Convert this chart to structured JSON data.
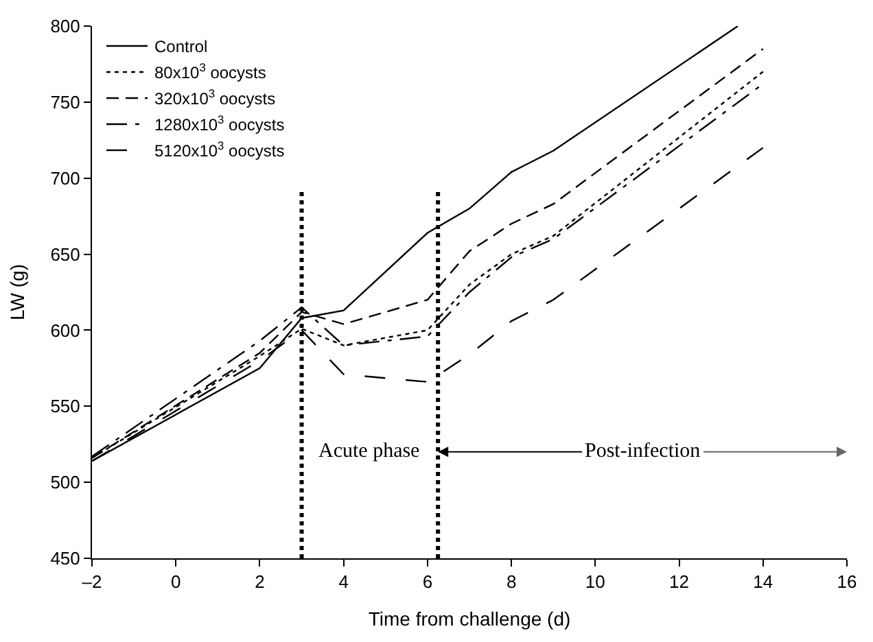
{
  "chart_data": {
    "type": "line",
    "xlabel": "Time from challenge (d)",
    "ylabel": "LW (g)",
    "xlim": [
      -2,
      16
    ],
    "xticks": [
      {
        "value": -2,
        "label": "–2"
      },
      0,
      2,
      4,
      6,
      8,
      10,
      12,
      14,
      16
    ],
    "ylim": [
      450,
      800
    ],
    "yticks": [
      450,
      500,
      550,
      600,
      650,
      700,
      750,
      800
    ],
    "legend": "top left",
    "marker": "none",
    "series": [
      {
        "name": "Control",
        "color": "#000000",
        "line_style": "solid",
        "x": [
          -2,
          2,
          3,
          4,
          6,
          7,
          8,
          9,
          13.4
        ],
        "values": [
          514,
          575,
          608,
          613,
          664,
          680,
          704,
          718,
          800
        ]
      },
      {
        "name": "80x10$^{3}$ oocysts",
        "color": "#000000",
        "line_style": "dotted",
        "x": [
          -2,
          2,
          3,
          4,
          6,
          7,
          8,
          9,
          14
        ],
        "values": [
          516,
          583,
          601,
          590,
          600,
          630,
          650,
          662,
          770
        ]
      },
      {
        "name": "320x10$^{3}$ oocysts",
        "color": "#000000",
        "line_style": "dashed",
        "x": [
          -2,
          2,
          3,
          4,
          6,
          7,
          8,
          9,
          14
        ],
        "values": [
          516,
          585,
          612,
          604,
          620,
          652,
          670,
          683,
          785
        ]
      },
      {
        "name": "1280x10$^{3}$ oocysts",
        "color": "#000000",
        "line_style": "dashdot",
        "x": [
          -2,
          2,
          3,
          4,
          6,
          7,
          8,
          9,
          14
        ],
        "values": [
          517,
          593,
          615,
          590,
          596,
          625,
          648,
          660,
          762
        ]
      },
      {
        "name": "5120x10$^{3}$ oocysts",
        "color": "#000000",
        "line_style": "longdash",
        "x": [
          -2,
          2,
          3,
          4,
          6,
          7,
          8,
          9,
          14
        ],
        "values": [
          514,
          580,
          600,
          571,
          566,
          584,
          606,
          620,
          720
        ]
      }
    ],
    "ref_lines": [
      {
        "axis": "x",
        "value": 3,
        "line_style": "dotted",
        "color": "#000000"
      },
      {
        "axis": "x",
        "value": 6.25,
        "line_style": "dotted",
        "color": "#000000"
      }
    ],
    "annotations": [
      "Acute phase",
      {
        "text": "Post-infection",
        "x": 6.25,
        "y": 520
      }
    ]
  }
}
